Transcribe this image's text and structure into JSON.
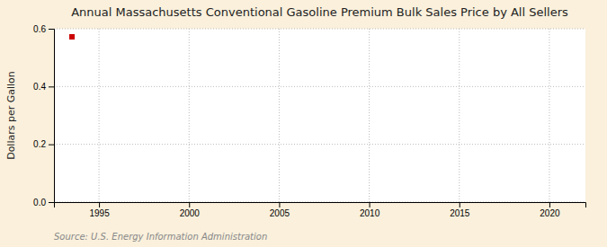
{
  "chart_data": {
    "type": "scatter",
    "title": "Annual Massachusetts Conventional Gasoline Premium Bulk Sales Price by All Sellers",
    "y_label": "Dollars per Gallon",
    "annotations": [
      "Source: U.S. Energy Information Administration"
    ],
    "x": [
      1993.5
    ],
    "values": [
      0.572
    ],
    "color": "#cc0000",
    "marker": "square",
    "xlim": [
      1992.5,
      2022
    ],
    "ylim": [
      0.0,
      0.6
    ],
    "xticks": [
      1995,
      2000,
      2005,
      2010,
      2015,
      2020
    ],
    "yticks": [
      {
        "value": 0.0,
        "label": "0.0"
      },
      0.2,
      0.4,
      0.6
    ],
    "grid": true
  }
}
